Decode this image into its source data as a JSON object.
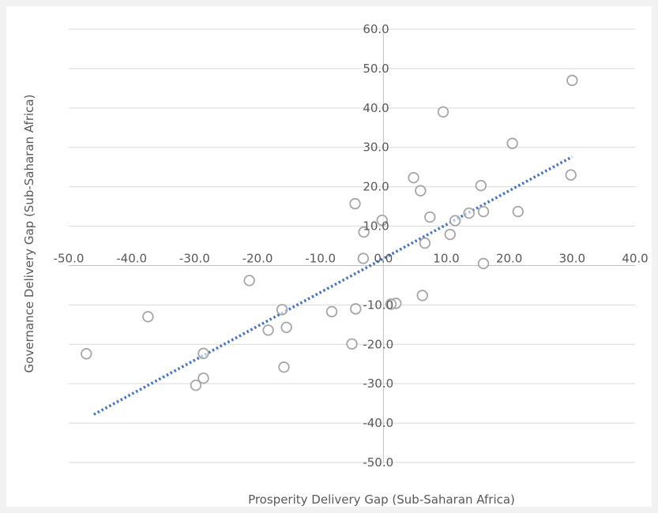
{
  "chart_data": {
    "type": "scatter",
    "title": "",
    "xlabel": "Prosperity Delivery Gap (Sub-Saharan Africa)",
    "ylabel": "Governance Delivery Gap  (Sub-Saharan Africa)",
    "xlim": [
      -50,
      40
    ],
    "ylim": [
      -50,
      60
    ],
    "x_ticks": [
      -50,
      -40,
      -30,
      -20,
      -10,
      0,
      10,
      20,
      30,
      40
    ],
    "y_ticks": [
      -50,
      -40,
      -30,
      -20,
      -10,
      10,
      20,
      30,
      40,
      50,
      60
    ],
    "x_tick_labels": [
      "-50.0",
      "-40.0",
      "-30.0",
      "-20.0",
      "-10.0",
      "0.0",
      "10.0",
      "20.0",
      "30.0",
      "40.0"
    ],
    "y_tick_labels": [
      "-50.0",
      "-40.0",
      "-30.0",
      "-20.0",
      "-10.0",
      "10.0",
      "20.0",
      "30.0",
      "40.0",
      "50.0",
      "60.0"
    ],
    "grid": true,
    "legend": "none",
    "colors": {
      "marker": "#a6a6a6",
      "trendline": "#4472c4",
      "grid": "#d9d9d9",
      "axis": "#bfbfbf",
      "text": "#595959"
    },
    "points": [
      {
        "x": 30.0,
        "y": 47.0
      },
      {
        "x": 9.5,
        "y": 39.0
      },
      {
        "x": 20.5,
        "y": 31.0
      },
      {
        "x": 29.8,
        "y": 23.0
      },
      {
        "x": 4.8,
        "y": 22.3
      },
      {
        "x": 15.5,
        "y": 20.3
      },
      {
        "x": 5.9,
        "y": 19.0
      },
      {
        "x": -4.5,
        "y": 15.7
      },
      {
        "x": 13.6,
        "y": 13.3
      },
      {
        "x": 15.9,
        "y": 13.7
      },
      {
        "x": 21.4,
        "y": 13.7
      },
      {
        "x": 7.4,
        "y": 12.3
      },
      {
        "x": -0.2,
        "y": 11.5
      },
      {
        "x": 11.4,
        "y": 11.4
      },
      {
        "x": -3.1,
        "y": 8.5
      },
      {
        "x": 10.6,
        "y": 7.9
      },
      {
        "x": 6.6,
        "y": 5.7
      },
      {
        "x": -3.2,
        "y": 1.8
      },
      {
        "x": 15.9,
        "y": 0.5
      },
      {
        "x": -21.3,
        "y": -3.8
      },
      {
        "x": 6.2,
        "y": -7.6
      },
      {
        "x": 2.0,
        "y": -9.6
      },
      {
        "x": 1.2,
        "y": -9.8
      },
      {
        "x": -4.4,
        "y": -11.0
      },
      {
        "x": -16.1,
        "y": -11.2
      },
      {
        "x": -8.2,
        "y": -11.7
      },
      {
        "x": -37.4,
        "y": -13.0
      },
      {
        "x": -15.4,
        "y": -15.7
      },
      {
        "x": -18.3,
        "y": -16.4
      },
      {
        "x": -5.0,
        "y": -19.9
      },
      {
        "x": -47.2,
        "y": -22.4
      },
      {
        "x": -28.6,
        "y": -22.3
      },
      {
        "x": -15.8,
        "y": -25.8
      },
      {
        "x": -28.6,
        "y": -28.6
      },
      {
        "x": -29.8,
        "y": -30.4
      }
    ],
    "trendline": {
      "style": "dotted",
      "x": [
        -46,
        30
      ],
      "y": [
        -37.8,
        27.6
      ]
    }
  }
}
